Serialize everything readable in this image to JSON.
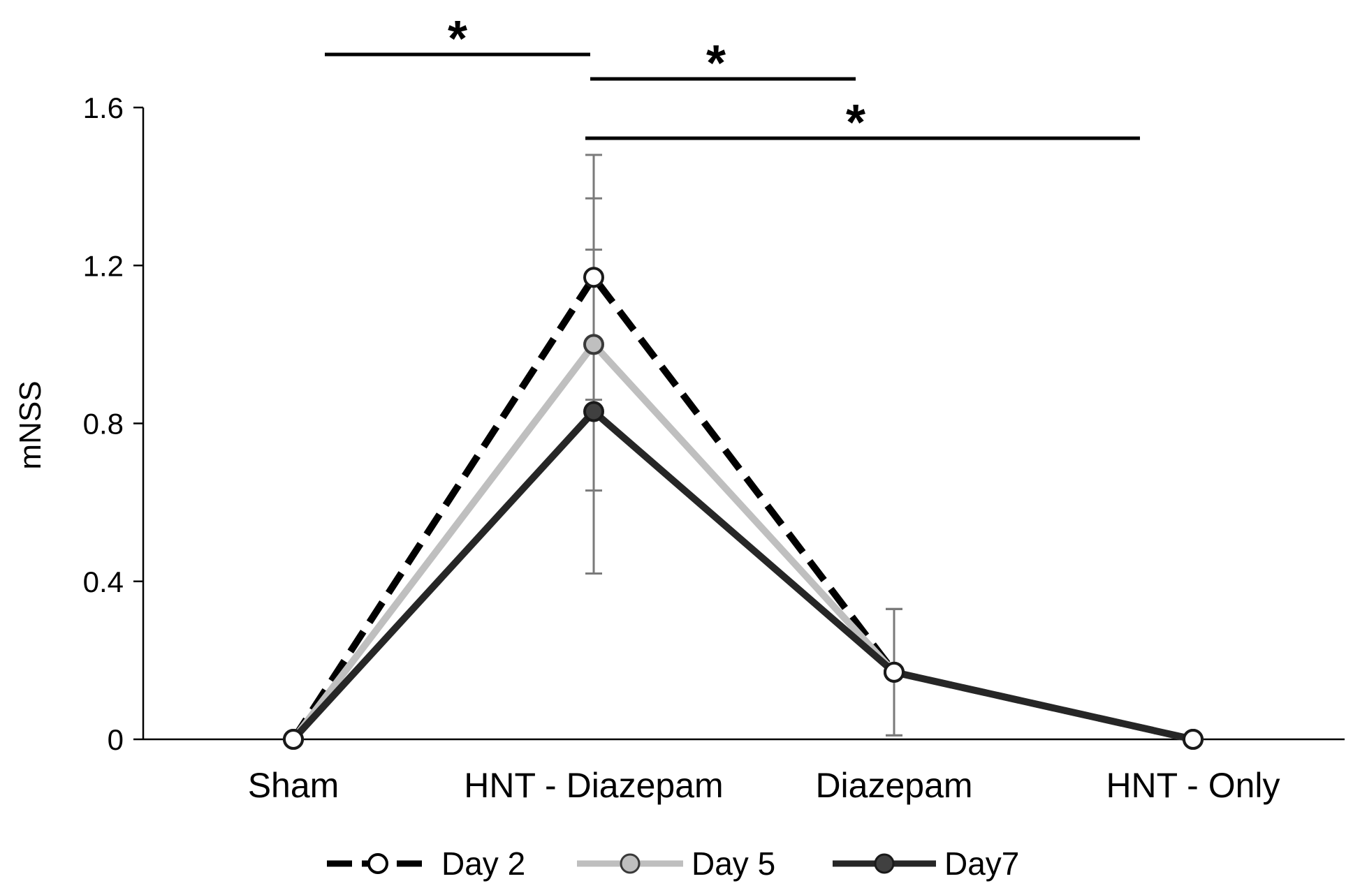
{
  "chart_data": {
    "type": "line",
    "title": "",
    "xlabel": "",
    "ylabel": "mNSS",
    "ylim": [
      0,
      1.6
    ],
    "yticks": [
      0,
      0.4,
      0.8,
      1.2,
      1.6
    ],
    "ytick_labels": [
      "0",
      "0.4",
      "0.8",
      "1.2",
      "1.6"
    ],
    "categories": [
      "Sham",
      "HNT - Diazepam",
      "Diazepam",
      "HNT - Only"
    ],
    "series": [
      {
        "name": "Day 2",
        "values": [
          0,
          1.17,
          0.17,
          0
        ],
        "error": [
          0,
          0.31,
          0.16,
          0
        ],
        "color": "#000000",
        "marker_fill": "#ffffff",
        "line_style": "dashed"
      },
      {
        "name": "Day 5",
        "values": [
          0,
          1.0,
          0.17,
          0
        ],
        "error": [
          0,
          0.37,
          0.16,
          0
        ],
        "color": "#bfbfbf",
        "marker_fill": "#bfbfbf",
        "line_style": "solid"
      },
      {
        "name": "Day7",
        "values": [
          0,
          0.83,
          0.17,
          0
        ],
        "error": [
          0,
          0.41,
          0.16,
          0
        ],
        "color": "#262626",
        "marker_fill": "#404040",
        "line_style": "solid"
      }
    ],
    "significance": [
      {
        "from": 0,
        "to": 1,
        "label": "*"
      },
      {
        "from": 1,
        "to": 2,
        "label": "*"
      },
      {
        "from": 1,
        "to": 3,
        "label": "*"
      }
    ],
    "grid": false,
    "legend_position": "bottom-center"
  }
}
